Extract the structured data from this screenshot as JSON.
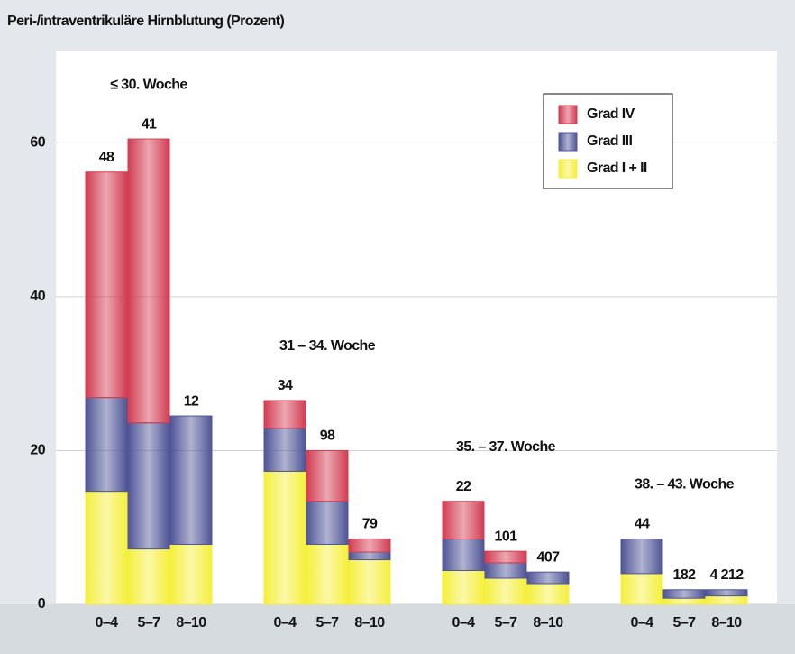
{
  "chart_data": {
    "type": "stacked-bar",
    "title": "Peri-/intraventrikuläre Hirnblutung (Prozent)",
    "groups": [
      {
        "name": "≤ 30. Woche",
        "categories": [
          "0–4",
          "5–7",
          "8–10"
        ]
      },
      {
        "name": "31 – 34. Woche",
        "categories": [
          "0–4",
          "5–7",
          "8–10"
        ]
      },
      {
        "name": "35. – 37. Woche",
        "categories": [
          "0–4",
          "5–7",
          "8–10"
        ]
      },
      {
        "name": "38. – 43. Woche",
        "categories": [
          "0–4",
          "5–7",
          "8–10"
        ]
      }
    ],
    "series": [
      {
        "name": "Grad I + II",
        "color": "#f5ef3c",
        "values": [
          14.7,
          7.2,
          7.8,
          17.3,
          7.8,
          5.8,
          4.4,
          3.4,
          2.7,
          4.0,
          0.8,
          1.1
        ]
      },
      {
        "name": "Grad III",
        "color": "#4f5596",
        "values": [
          12.2,
          16.4,
          16.7,
          5.6,
          5.6,
          1.0,
          4.1,
          2.0,
          1.5,
          4.5,
          1.1,
          0.8
        ]
      },
      {
        "name": "Grad IV",
        "color": "#d23c52",
        "values": [
          29.3,
          36.9,
          0,
          3.6,
          6.6,
          1.7,
          4.9,
          1.5,
          0,
          0,
          0,
          0
        ]
      }
    ],
    "bar_labels": [
      "48",
      "41",
      "12",
      "34",
      "98",
      "79",
      "22",
      "101",
      "407",
      "44",
      "182",
      "4 212"
    ],
    "ylim": [
      0,
      72
    ],
    "yticks": [
      0,
      20,
      40,
      60
    ],
    "grid": true,
    "legend": "upper-right"
  }
}
